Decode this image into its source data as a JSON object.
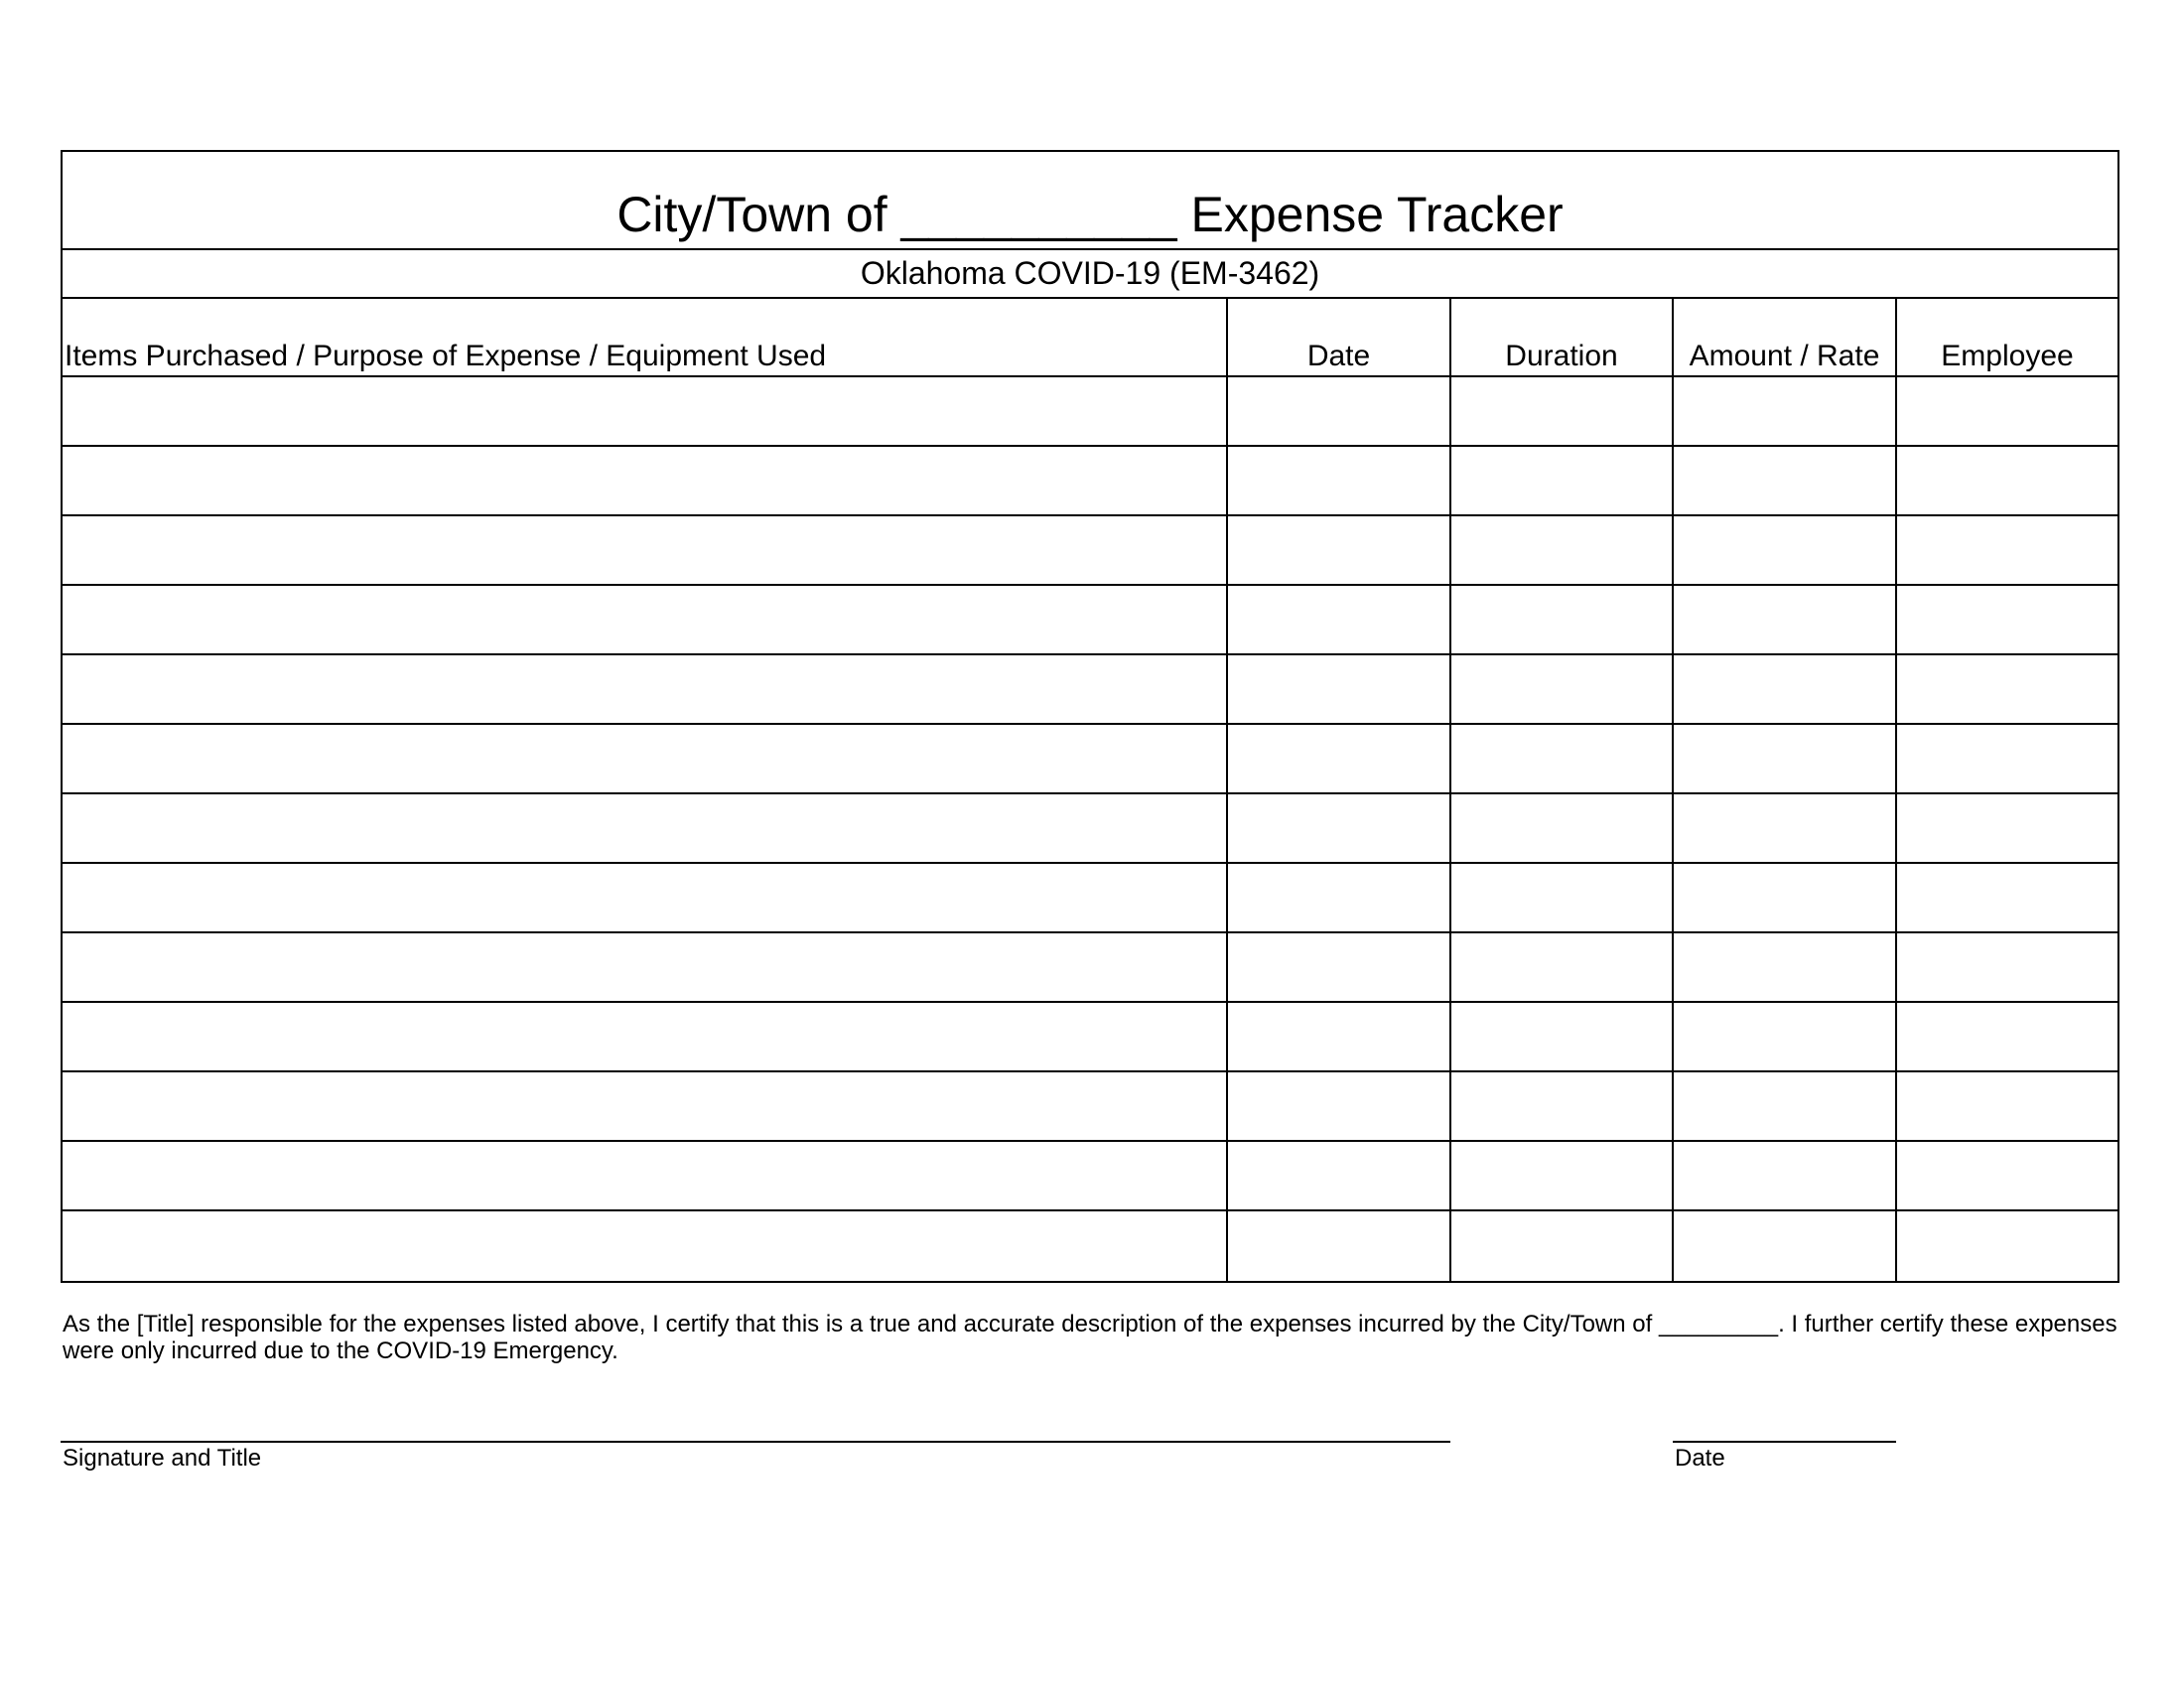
{
  "form": {
    "title": "City/Town of __________ Expense Tracker",
    "subtitle": "Oklahoma COVID-19 (EM-3462)",
    "columns": [
      "Items Purchased / Purpose of Expense / Equipment Used",
      "Date",
      "Duration",
      "Amount / Rate",
      "Employee"
    ],
    "empty_rows": 13,
    "certification": "As the [Title] responsible for the expenses listed above, I certify that this is a true and accurate description of the expenses incurred by the City/Town of _________.  I further certify these expenses were only incurred due to the COVID-19 Emergency.",
    "signature_label": "Signature and Title",
    "date_label": "Date"
  }
}
